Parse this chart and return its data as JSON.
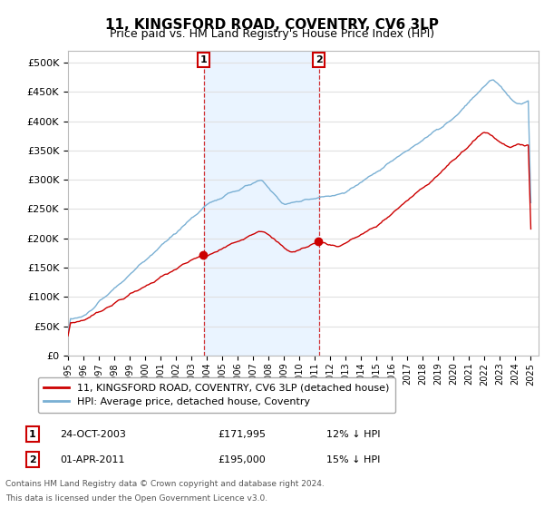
{
  "title": "11, KINGSFORD ROAD, COVENTRY, CV6 3LP",
  "subtitle": "Price paid vs. HM Land Registry's House Price Index (HPI)",
  "ylim": [
    0,
    520000
  ],
  "yticks": [
    0,
    50000,
    100000,
    150000,
    200000,
    250000,
    300000,
    350000,
    400000,
    450000,
    500000
  ],
  "ytick_labels": [
    "£0",
    "£50K",
    "£100K",
    "£150K",
    "£200K",
    "£250K",
    "£300K",
    "£350K",
    "£400K",
    "£450K",
    "£500K"
  ],
  "legend_entries": [
    "11, KINGSFORD ROAD, COVENTRY, CV6 3LP (detached house)",
    "HPI: Average price, detached house, Coventry"
  ],
  "line_colors": [
    "#cc0000",
    "#7ab0d4"
  ],
  "marker1_price": 171995,
  "marker2_price": 195000,
  "sale1_year": 2003.79,
  "sale2_year": 2011.25,
  "footer1": "Contains HM Land Registry data © Crown copyright and database right 2024.",
  "footer2": "This data is licensed under the Open Government Licence v3.0.",
  "table_row1": [
    "1",
    "24-OCT-2003",
    "£171,995",
    "12% ↓ HPI"
  ],
  "table_row2": [
    "2",
    "01-APR-2011",
    "£195,000",
    "15% ↓ HPI"
  ],
  "bg_color": "#ffffff",
  "grid_color": "#e0e0e0",
  "shade_color": "#ddeeff",
  "xmin": 1995,
  "xmax": 2025.5
}
